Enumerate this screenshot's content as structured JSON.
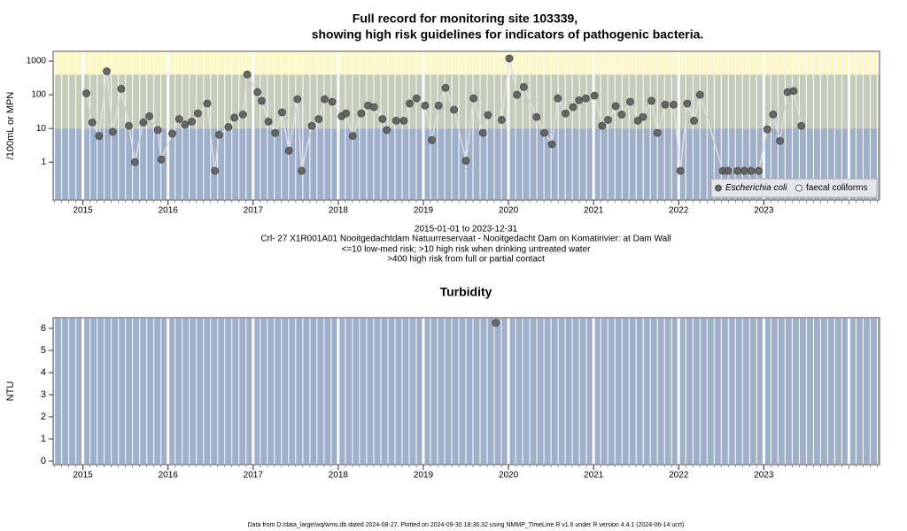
{
  "chart_data": [
    {
      "type": "line",
      "title": [
        "Full record for monitoring site 103339,",
        "showing high risk guidelines for indicators of pathogenic bacteria."
      ],
      "xlim": [
        2014.65,
        2024.36
      ],
      "xticks": [
        2015,
        2016,
        2017,
        2018,
        2019,
        2020,
        2021,
        2022,
        2023
      ],
      "ylim": [
        0.075,
        1950
      ],
      "log_y": true,
      "yticks": [
        1,
        10,
        100,
        1000
      ],
      "y_label": "/100mL or MPN",
      "risk_thresholds": [
        10,
        400
      ],
      "band_colors": [
        "#9eafc9",
        "#c3cbb9",
        "#fcf8c8"
      ],
      "grid_color": "#ffffff",
      "legend": "bottom-right",
      "series": [
        {
          "name": "Escherichia coli",
          "marker": "filled",
          "color": "#666666",
          "line_color": "#dddddd",
          "x": [
            2015.04,
            2015.11,
            2015.19,
            2015.28,
            2015.35,
            2015.45,
            2015.54,
            2015.61,
            2015.71,
            2015.78,
            2015.88,
            2015.92,
            2016.05,
            2016.13,
            2016.2,
            2016.28,
            2016.35,
            2016.46,
            2016.55,
            2016.6,
            2016.71,
            2016.78,
            2016.88,
            2016.93,
            2017.05,
            2017.1,
            2017.18,
            2017.26,
            2017.34,
            2017.42,
            2017.52,
            2017.57,
            2017.69,
            2017.77,
            2017.84,
            2017.93,
            2018.04,
            2018.09,
            2018.17,
            2018.27,
            2018.35,
            2018.42,
            2018.52,
            2018.57,
            2018.68,
            2018.77,
            2018.84,
            2018.92,
            2019.02,
            2019.1,
            2019.18,
            2019.26,
            2019.36,
            2019.5,
            2019.59,
            2019.7,
            2019.76,
            2019.92,
            2020.01,
            2020.1,
            2020.18,
            2020.33,
            2020.42,
            2020.51,
            2020.58,
            2020.67,
            2020.76,
            2020.83,
            2020.91,
            2021.01,
            2021.1,
            2021.17,
            2021.26,
            2021.33,
            2021.43,
            2021.52,
            2021.58,
            2021.68,
            2021.75,
            2021.84,
            2021.94,
            2022.02,
            2022.1,
            2022.18,
            2022.25,
            2022.52,
            2022.58,
            2022.69,
            2022.77,
            2022.85,
            2022.94,
            2023.04,
            2023.11,
            2023.19,
            2023.28,
            2023.35,
            2023.44
          ],
          "values": [
            110,
            15,
            6,
            500,
            8,
            150,
            12,
            1,
            15,
            23,
            9,
            1.2,
            7,
            19,
            13,
            16,
            28,
            55,
            0.55,
            6.5,
            11,
            21,
            26,
            400,
            120,
            66,
            16,
            7.4,
            30,
            2.2,
            74,
            0.55,
            12,
            19,
            74,
            62,
            23,
            28,
            6,
            28,
            48,
            43,
            19,
            9,
            17,
            17,
            55,
            78,
            48,
            4.5,
            48,
            160,
            36,
            1.1,
            78,
            7.4,
            25,
            18,
            1200,
            100,
            170,
            22,
            7.4,
            3.4,
            78,
            28,
            43,
            69,
            78,
            94,
            12,
            18,
            46,
            26,
            62,
            17,
            22,
            66,
            7.4,
            51,
            51,
            0.55,
            55,
            17,
            100,
            0.55,
            0.55,
            0.55,
            0.55,
            0.55,
            0.55,
            9.4,
            26,
            4.3,
            120,
            130,
            12
          ]
        },
        {
          "name": "faecal coliforms",
          "marker": "open",
          "color": "#666666",
          "x": [],
          "values": []
        }
      ],
      "notes": [
        "2015-01-01 to 2023-12-31",
        "Crl- 27 X1R001A01 Nooitgedachtdam Natuurreservaat - Nooitgedacht Dam on Komatirivier: at Dam Wall",
        "<=10 low-med risk; >10 high risk when drinking untreated water",
        ">400 high risk from full or partial contact"
      ]
    },
    {
      "type": "scatter",
      "title": "Turbidity",
      "xlim": [
        2014.65,
        2024.36
      ],
      "xticks": [
        2015,
        2016,
        2017,
        2018,
        2019,
        2020,
        2021,
        2022,
        2023
      ],
      "ylim": [
        -0.16,
        6.48
      ],
      "yticks": [
        0,
        1,
        2,
        3,
        4,
        5,
        6
      ],
      "y_label": "NTU",
      "background": "#9eafc9",
      "grid_color": "#ffffff",
      "series": [
        {
          "color": "#666666",
          "marker": "filled",
          "x": [
            2019.85
          ],
          "values": [
            6.25
          ]
        }
      ]
    }
  ],
  "footer": "Data from D:/data_large/wq/wms.db dated 2024-08-27. Plotted on 2024-09-30 18:36:32 using NMMP_TimeLine.R v1.6 under R version 4.4.1 (2024-06-14 ucrt)"
}
